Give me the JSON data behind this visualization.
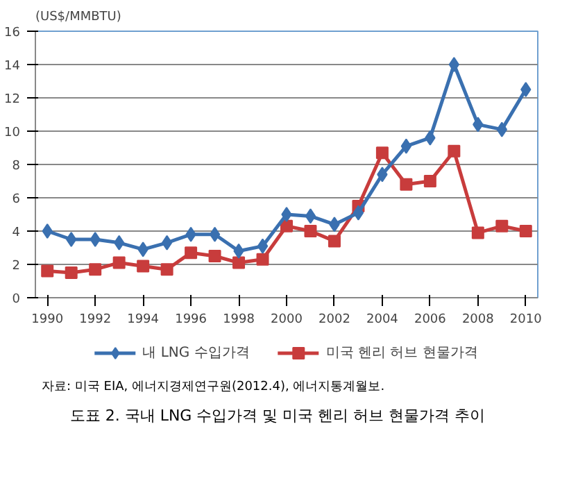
{
  "chart_data": {
    "type": "line",
    "title": "도표 2. 국내 LNG 수입가격 및 미국 헨리 허브 현물가격 추이",
    "ylabel": "(US$/MMBTU)",
    "annotations": [
      "자료: 미국 EIA, 에너지경제연구원(2012.4), 에너지통계월보."
    ],
    "x": [
      1990,
      1991,
      1992,
      1993,
      1994,
      1995,
      1996,
      1997,
      1998,
      1999,
      2000,
      2001,
      2002,
      2003,
      2004,
      2005,
      2006,
      2007,
      2008,
      2009,
      2010
    ],
    "series": [
      {
        "name": "내 LNG 수입가격",
        "color": "#3a70b0",
        "marker": "diamond",
        "values": [
          4.0,
          3.5,
          3.5,
          3.3,
          2.9,
          3.3,
          3.8,
          3.8,
          2.8,
          3.1,
          5.0,
          4.9,
          4.4,
          5.1,
          7.4,
          9.1,
          9.6,
          14.0,
          10.4,
          10.1,
          12.5
        ]
      },
      {
        "name": "미국 헨리 허브 현물가격",
        "color": "#c83c3c",
        "marker": "square",
        "values": [
          1.6,
          1.5,
          1.7,
          2.1,
          1.9,
          1.7,
          2.7,
          2.5,
          2.1,
          2.3,
          4.3,
          4.0,
          3.4,
          5.5,
          8.7,
          6.8,
          7.0,
          8.8,
          3.9,
          4.3,
          4.0
        ]
      }
    ],
    "xlim": [
      1989.5,
      2010.5
    ],
    "xticks": [
      1990,
      1992,
      1994,
      1996,
      1998,
      2000,
      2002,
      2004,
      2006,
      2008,
      2010
    ],
    "ylim": [
      0,
      16
    ],
    "yticks": [
      0,
      2,
      4,
      6,
      8,
      10,
      12,
      14,
      16
    ],
    "grid": "y",
    "legend": "bottom",
    "line_style": "solid"
  }
}
